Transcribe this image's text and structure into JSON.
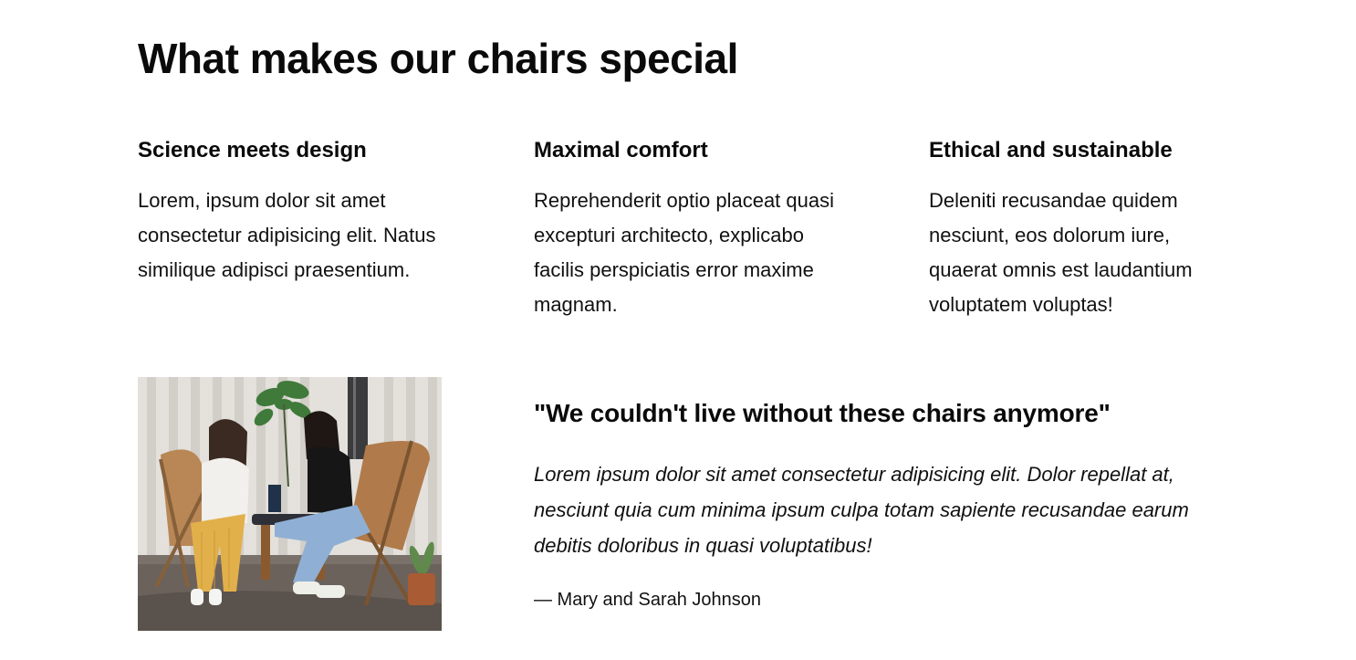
{
  "heading": "What makes our chairs special",
  "features": [
    {
      "title": "Science meets design",
      "text": "Lorem, ipsum dolor sit amet consectetur adipisicing elit. Natus similique adipisci praesentium."
    },
    {
      "title": "Maximal comfort",
      "text": "Reprehenderit optio placeat quasi excepturi architecto, explicabo facilis perspiciatis error maxime magnam."
    },
    {
      "title": "Ethical and sustainable",
      "text": "Deleniti recusandae quidem nesciunt, eos dolorum iure, quaerat omnis est laudantium voluptatem voluptas!"
    }
  ],
  "testimonial": {
    "title": "\"We couldn't live without these chairs anymore\"",
    "quote": "Lorem ipsum dolor sit amet consectetur adipisicing elit. Dolor repellat at, nesciunt quia cum minima ipsum culpa totam sapiente recusandae earum debitis doloribus in quasi voluptatibus!",
    "author": "— Mary and Sarah Johnson",
    "image": "testimonial-photo"
  }
}
